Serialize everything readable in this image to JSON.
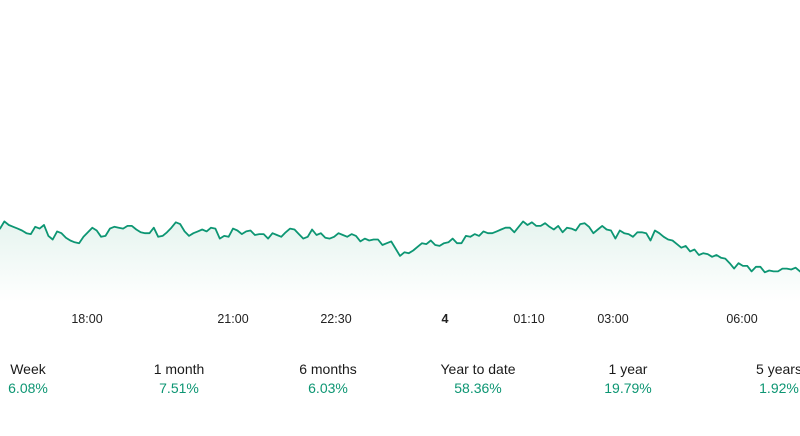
{
  "colors": {
    "line": "#0d9673",
    "fill_top": "#e6f4ef",
    "fill_bottom": "#ffffff",
    "positive": "#0d9673",
    "text": "#1a1a1a"
  },
  "chart_data": {
    "type": "area",
    "x_ticks": [
      {
        "label": "18:00",
        "bold": false
      },
      {
        "label": "21:00",
        "bold": false
      },
      {
        "label": "22:30",
        "bold": false
      },
      {
        "label": "4",
        "bold": true
      },
      {
        "label": "01:10",
        "bold": false
      },
      {
        "label": "03:00",
        "bold": false
      },
      {
        "label": "06:00",
        "bold": false
      }
    ],
    "series": [
      {
        "values": [
          284,
          292,
          288,
          286,
          284,
          282,
          279,
          278,
          286,
          284,
          288,
          276,
          272,
          281,
          279,
          274,
          271,
          269,
          268,
          275,
          280,
          285,
          282,
          275,
          276,
          284,
          286,
          285,
          284,
          287,
          287,
          283,
          280,
          279,
          279,
          285,
          275,
          276,
          280,
          285,
          291,
          289,
          281,
          276,
          279,
          281,
          283,
          281,
          285,
          284,
          273,
          276,
          275,
          284,
          282,
          278,
          281,
          282,
          277,
          278,
          278,
          273,
          279,
          277,
          275,
          280,
          284,
          283,
          278,
          273,
          275,
          283,
          277,
          279,
          274,
          273,
          275,
          279,
          277,
          275,
          278,
          276,
          270,
          273,
          271,
          272,
          272,
          266,
          268,
          270,
          262,
          254,
          258,
          257,
          260,
          264,
          268,
          267,
          271,
          266,
          265,
          268,
          269,
          273,
          268,
          268,
          276,
          275,
          278,
          276,
          281,
          279,
          279,
          281,
          283,
          285,
          285,
          280,
          286,
          292,
          288,
          291,
          287,
          287,
          290,
          286,
          283,
          287,
          280,
          285,
          284,
          282,
          289,
          290,
          286,
          279,
          283,
          287,
          283,
          282,
          273,
          282,
          279,
          278,
          275,
          280,
          280,
          279,
          271,
          282,
          279,
          275,
          272,
          271,
          267,
          263,
          265,
          259,
          261,
          255,
          257,
          256,
          253,
          255,
          252,
          251,
          246,
          240,
          246,
          243,
          243,
          237,
          242,
          242,
          236,
          238,
          237,
          237,
          240,
          240,
          239,
          241,
          237
        ],
        "ylim": [
          200,
          310
        ]
      }
    ]
  },
  "performance": [
    {
      "label": "Week",
      "value": "6.08%"
    },
    {
      "label": "1 month",
      "value": "7.51%"
    },
    {
      "label": "6 months",
      "value": "6.03%"
    },
    {
      "label": "Year to date",
      "value": "58.36%"
    },
    {
      "label": "1 year",
      "value": "19.79%"
    },
    {
      "label": "5 years",
      "value": "1.92%"
    }
  ]
}
